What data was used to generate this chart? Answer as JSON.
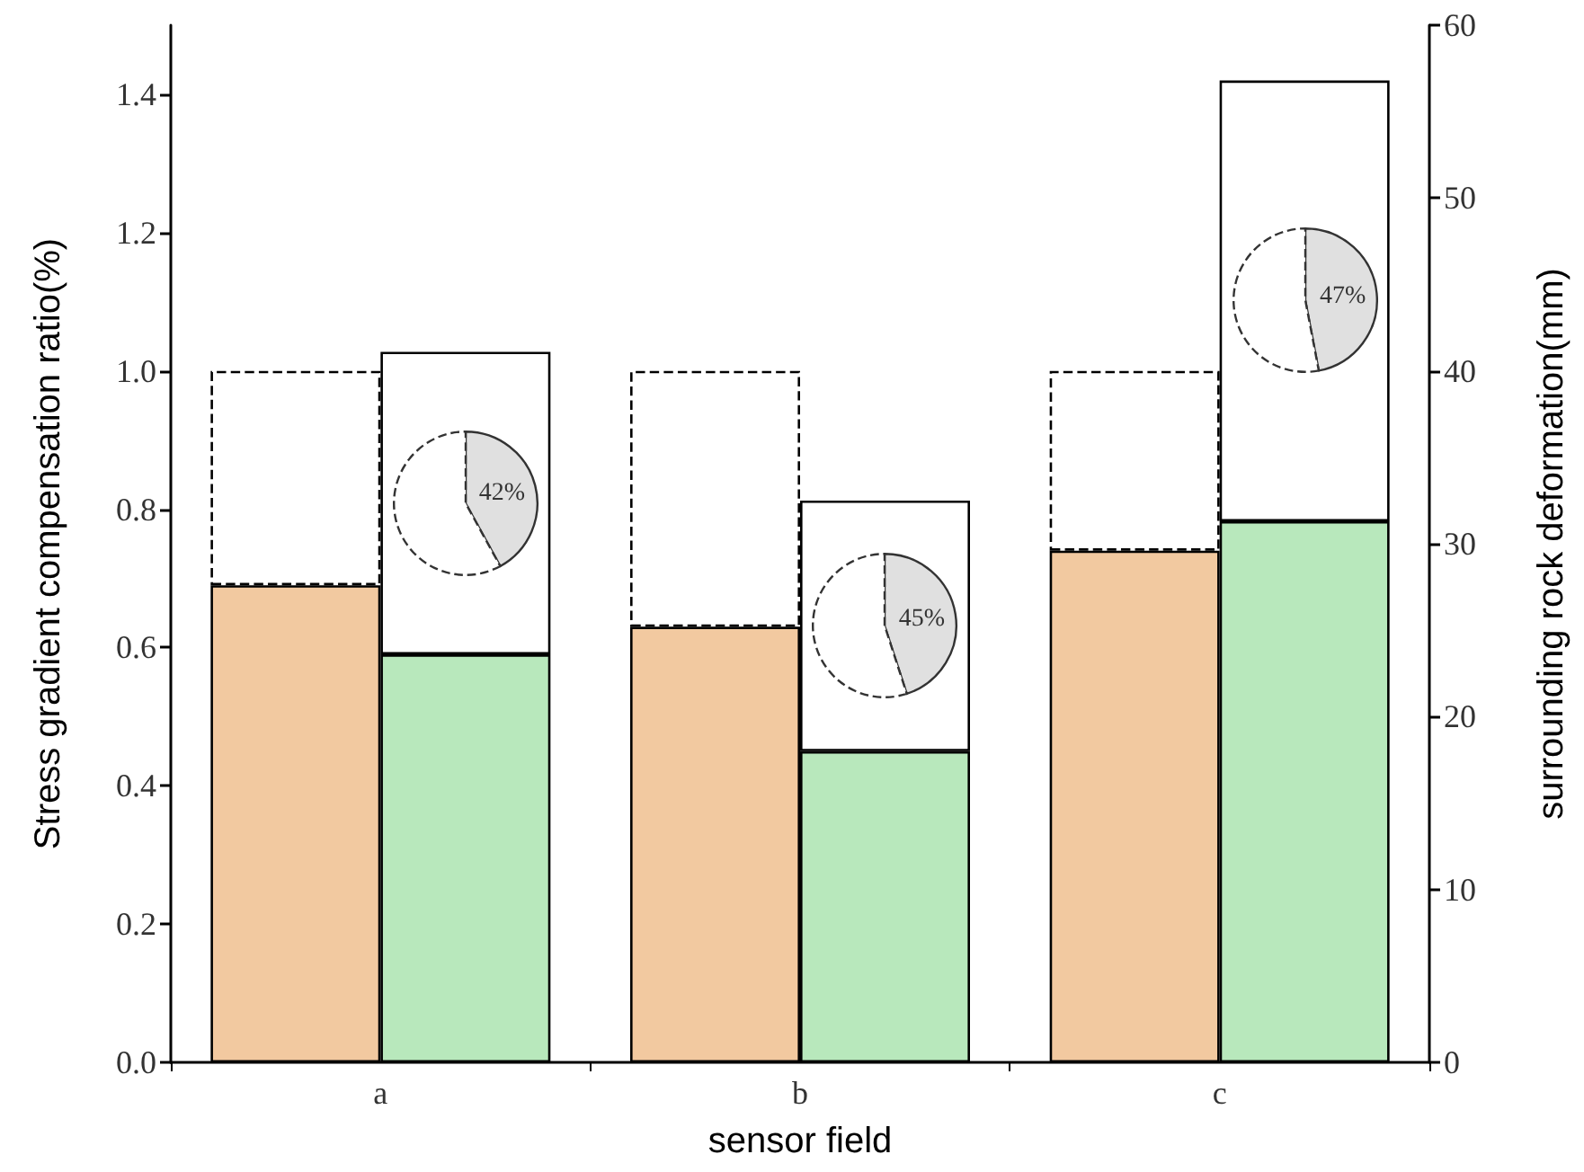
{
  "chart_data": [
    {
      "type": "bar",
      "xlabel": "sensor field",
      "ylabel": "Stress gradient compensation ratio(%)",
      "y2label": "surrounding rock deformation(mm)",
      "categories": [
        "a",
        "b",
        "c"
      ],
      "stacked": true,
      "series": [
        {
          "color": "#f2c9a0",
          "values": [
            0.69,
            0.63,
            0.74
          ]
        },
        {
          "color": "#ffffff",
          "line_style": "dashed",
          "values": [
            0.31,
            0.37,
            0.26
          ]
        },
        {
          "color": "#b8e8bc",
          "axis": "y2",
          "values": [
            23.6,
            18.0,
            31.3
          ]
        },
        {
          "color": "#ffffff",
          "axis": "y2",
          "values": [
            17.5,
            14.5,
            25.5
          ]
        }
      ],
      "ylim": [
        0,
        1.5
      ],
      "yticks": [
        {
          "value": 0,
          "label": "0.0"
        },
        0.2,
        0.4,
        0.6,
        0.8,
        {
          "value": 1,
          "label": "1.0"
        },
        1.2,
        1.4
      ],
      "y2lim": [
        0,
        60
      ],
      "y2ticks": [
        0,
        10,
        20,
        30,
        40,
        50,
        60
      ]
    },
    {
      "type": "pie",
      "categories": [
        null,
        null
      ],
      "values": [
        42,
        58
      ],
      "colors": [
        "#e0e0e0",
        "#ffffff"
      ],
      "value_labels": [
        "42%",
        null
      ]
    },
    {
      "type": "pie",
      "categories": [
        null,
        null
      ],
      "values": [
        45,
        55
      ],
      "colors": [
        "#e0e0e0",
        "#ffffff"
      ],
      "value_labels": [
        "45%",
        null
      ]
    },
    {
      "type": "pie",
      "categories": [
        null,
        null
      ],
      "values": [
        47,
        53
      ],
      "colors": [
        "#e0e0e0",
        "#ffffff"
      ],
      "value_labels": [
        "47%",
        null
      ]
    }
  ]
}
